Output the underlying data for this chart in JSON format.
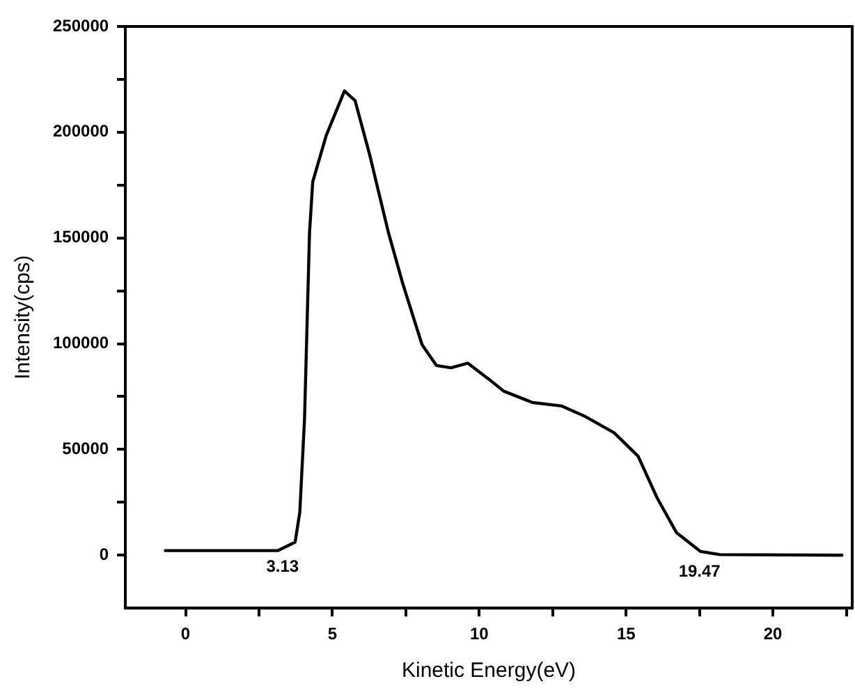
{
  "chart_data": {
    "type": "line",
    "xlabel": "Kinetic Energy(eV)",
    "ylabel": "Intensity(cps)",
    "xlim": [
      -2.05,
      22.7
    ],
    "xticks": [
      0,
      {
        "value": 2.5,
        "label": null
      },
      5,
      {
        "value": 7.5,
        "label": null
      },
      10,
      {
        "value": 12.5,
        "label": null
      },
      15,
      {
        "value": 17.5,
        "label": null
      },
      20,
      {
        "value": 22.5,
        "label": null
      }
    ],
    "ylim": [
      -25000,
      250000
    ],
    "yticks": [
      0,
      {
        "value": 25000,
        "label": null
      },
      50000,
      {
        "value": 75000,
        "label": null
      },
      100000,
      {
        "value": 125000,
        "label": null
      },
      150000,
      {
        "value": 175000,
        "label": null
      },
      200000,
      {
        "value": 225000,
        "label": null
      },
      250000
    ],
    "grid": false,
    "legend": false,
    "marker": "none",
    "line_style": "solid",
    "series": [
      {
        "color": "#000000",
        "x": [
          -0.69,
          3.15,
          3.73,
          3.89,
          4.05,
          4.22,
          4.33,
          4.79,
          5.41,
          5.77,
          6.26,
          6.91,
          7.4,
          8.05,
          8.54,
          9.04,
          9.61,
          10.34,
          10.83,
          11.81,
          12.79,
          13.61,
          14.59,
          15.41,
          16.06,
          16.72,
          17.53,
          18.19,
          22.35
        ],
        "values": [
          2200,
          2200,
          6200,
          20400,
          64400,
          152400,
          176600,
          198500,
          219500,
          215000,
          189800,
          152400,
          128200,
          99600,
          89700,
          88600,
          90800,
          83100,
          77600,
          72200,
          70600,
          65600,
          57900,
          46800,
          27000,
          10600,
          1800,
          300,
          0
        ]
      }
    ],
    "annotations": [
      {
        "text": "3.13",
        "x": 3.3,
        "y": 2200
      },
      {
        "text": "19.47",
        "x": 17.5,
        "y": 0
      }
    ]
  }
}
